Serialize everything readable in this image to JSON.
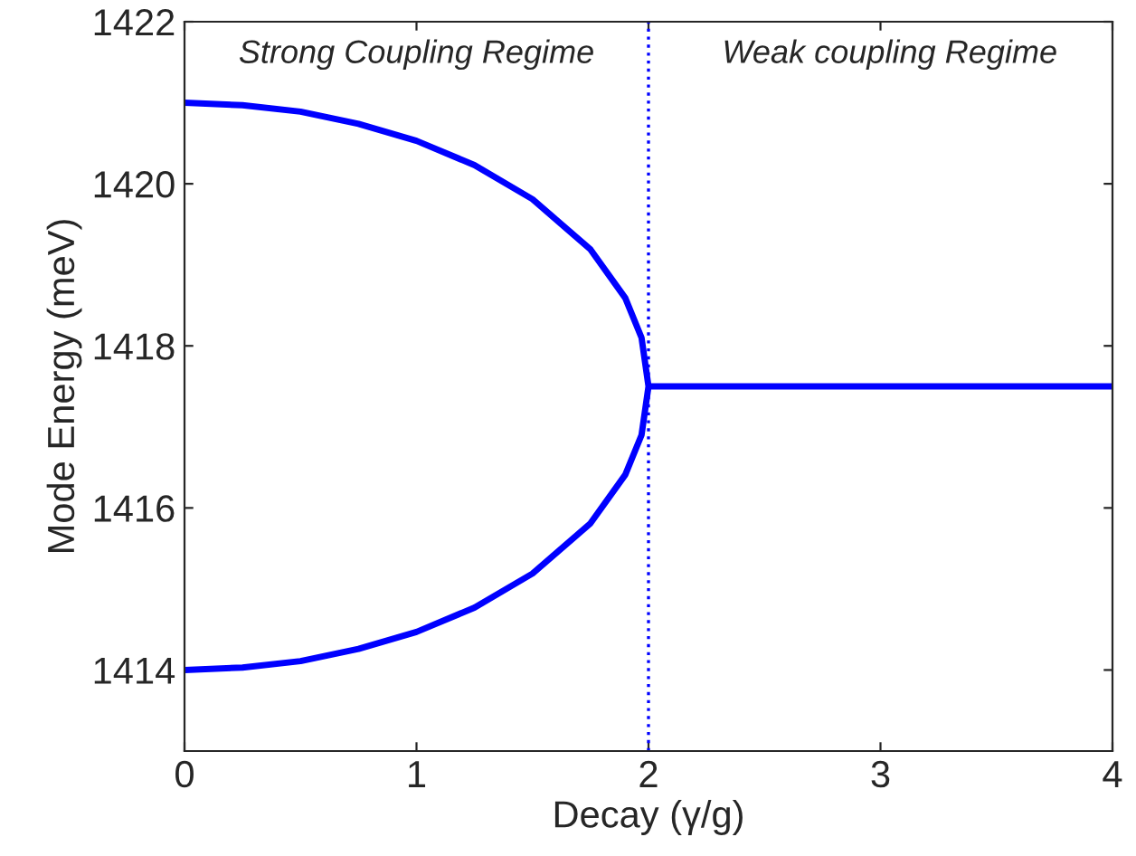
{
  "chart_data": {
    "type": "line",
    "xlabel": "Decay (γ/g)",
    "ylabel": "Mode Energy (meV)",
    "series": [
      {
        "color": "#0000ff",
        "x": [
          0,
          0.25,
          0.5,
          0.75,
          1,
          1.25,
          1.5,
          1.75,
          1.9,
          1.97,
          2,
          1.97,
          1.9,
          1.75,
          1.5,
          1.25,
          1,
          0.75,
          0.5,
          0.25,
          0,
          1,
          2,
          4
        ],
        "values": [
          1421,
          1420.97,
          1420.89,
          1420.74,
          1420.53,
          1420.23,
          1419.81,
          1419.19,
          1418.59,
          1418.1,
          1417.5,
          1416.9,
          1416.41,
          1415.81,
          1415.19,
          1414.77,
          1414.47,
          1414.26,
          1414.11,
          1414.03,
          1414,
          null,
          1417.5,
          1417.5
        ]
      }
    ],
    "ref_lines": [
      {
        "axis": "x",
        "value": 2,
        "color": "#0000ff",
        "line_style": "dotted"
      }
    ],
    "annotations": [
      "Strong Coupling Regime",
      "Weak coupling Regime"
    ],
    "xlim": [
      0,
      4
    ],
    "xticks": [
      0,
      1,
      2,
      3,
      4
    ],
    "ylim": [
      1413,
      1422
    ],
    "yticks": [
      1414,
      1416,
      1418,
      1420,
      1422
    ],
    "grid": false,
    "legend": false,
    "marker": "none",
    "line_style": "solid"
  }
}
